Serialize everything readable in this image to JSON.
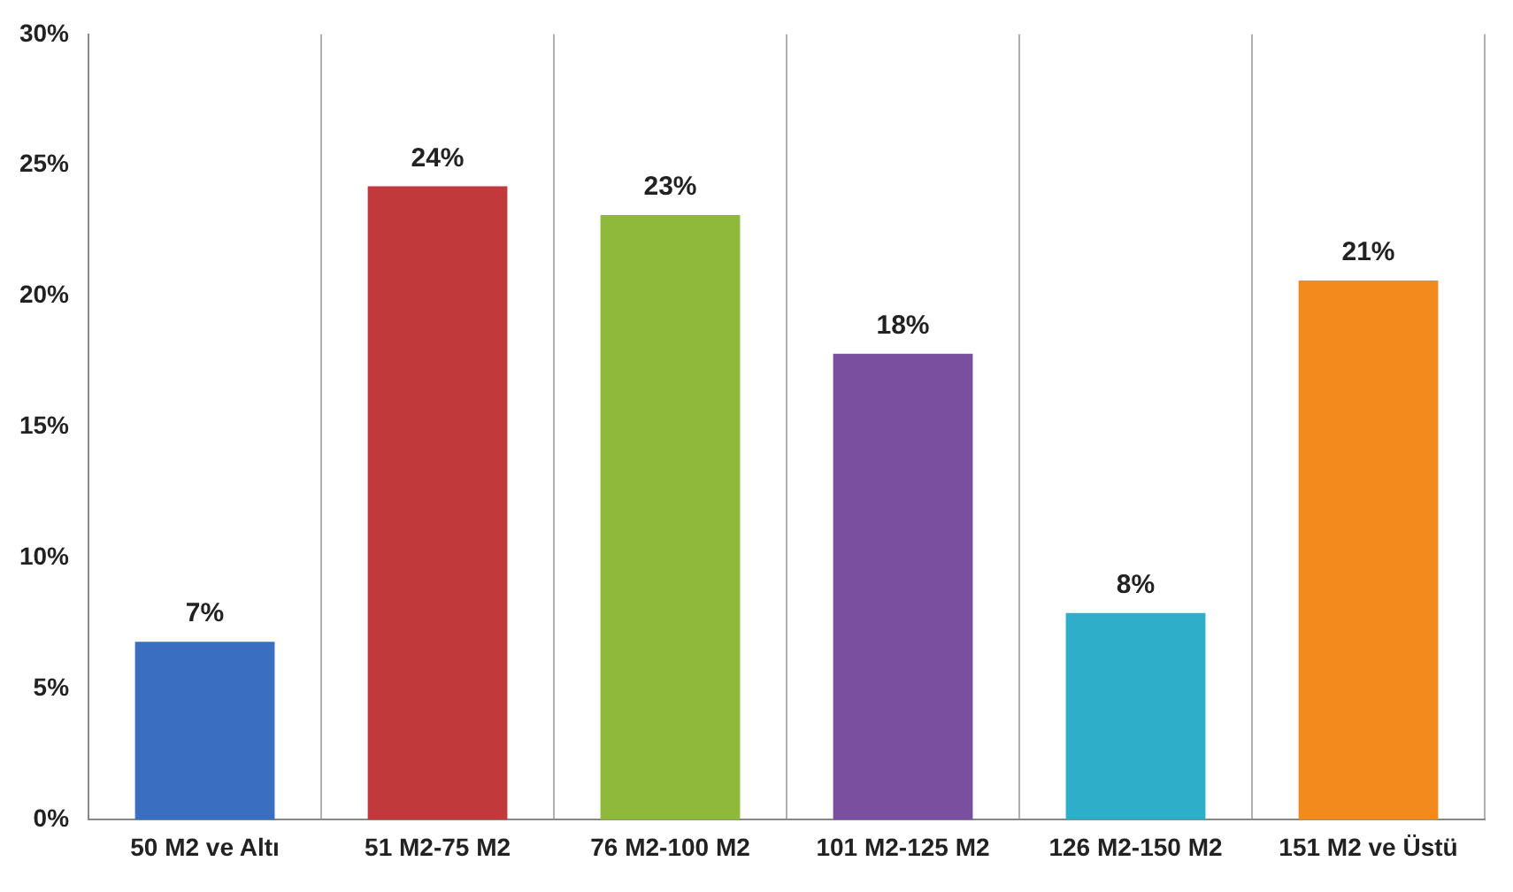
{
  "chart_data": {
    "type": "bar",
    "categories": [
      "50 M2 ve Altı",
      "51 M2-75 M2",
      "76 M2-100 M2",
      "101 M2-125 M2",
      "126 M2-150 M2",
      "151 M2 ve Üstü"
    ],
    "values": [
      6.8,
      24.2,
      23.1,
      17.8,
      7.9,
      20.6
    ],
    "value_labels": [
      "7%",
      "24%",
      "23%",
      "18%",
      "8%",
      "21%"
    ],
    "colors": [
      "#3a6fc0",
      "#c0393b",
      "#8fb93a",
      "#7b4fa0",
      "#2eaec8",
      "#f28a1e"
    ],
    "ylim": [
      0,
      30
    ],
    "yticks": [
      {
        "value": 0,
        "label": "0%"
      },
      {
        "value": 5,
        "label": "5%"
      },
      {
        "value": 10,
        "label": "10%"
      },
      {
        "value": 15,
        "label": "15%"
      },
      {
        "value": 20,
        "label": "20%"
      },
      {
        "value": 25,
        "label": "25%"
      },
      {
        "value": 30,
        "label": "30%"
      }
    ],
    "grid": "x",
    "legend": false
  }
}
